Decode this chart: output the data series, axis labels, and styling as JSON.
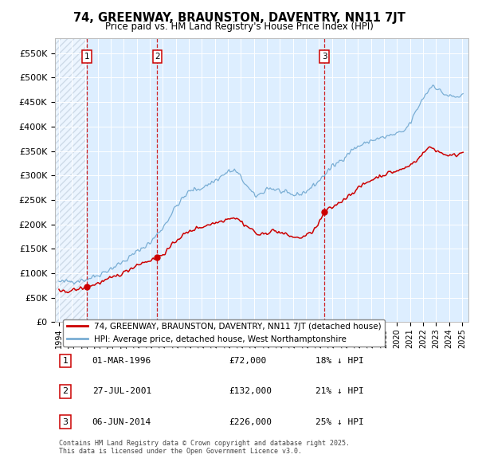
{
  "title": "74, GREENWAY, BRAUNSTON, DAVENTRY, NN11 7JT",
  "subtitle": "Price paid vs. HM Land Registry's House Price Index (HPI)",
  "ylabel_ticks": [
    "£0",
    "£50K",
    "£100K",
    "£150K",
    "£200K",
    "£250K",
    "£300K",
    "£350K",
    "£400K",
    "£450K",
    "£500K",
    "£550K"
  ],
  "ytick_values": [
    0,
    50000,
    100000,
    150000,
    200000,
    250000,
    300000,
    350000,
    400000,
    450000,
    500000,
    550000
  ],
  "ylim": [
    0,
    580000
  ],
  "hpi_color": "#7aaed4",
  "price_color": "#cc0000",
  "vline_color": "#cc0000",
  "background_color": "#ddeeff",
  "hatch_color": "#bbccdd",
  "sale_year_floats": [
    1996.17,
    2001.57,
    2014.43
  ],
  "sale_prices": [
    72000,
    132000,
    226000
  ],
  "sale_labels": [
    "1",
    "2",
    "3"
  ],
  "sale_info": [
    {
      "label": "1",
      "date": "01-MAR-1996",
      "price": "£72,000",
      "pct": "18% ↓ HPI"
    },
    {
      "label": "2",
      "date": "27-JUL-2001",
      "price": "£132,000",
      "pct": "21% ↓ HPI"
    },
    {
      "label": "3",
      "date": "06-JUN-2014",
      "price": "£226,000",
      "pct": "25% ↓ HPI"
    }
  ],
  "legend_entries": [
    "74, GREENWAY, BRAUNSTON, DAVENTRY, NN11 7JT (detached house)",
    "HPI: Average price, detached house, West Northamptonshire"
  ],
  "footer": "Contains HM Land Registry data © Crown copyright and database right 2025.\nThis data is licensed under the Open Government Licence v3.0.",
  "xlim_left": 1993.7,
  "xlim_right": 2025.5,
  "hatch_end": 1996.17
}
